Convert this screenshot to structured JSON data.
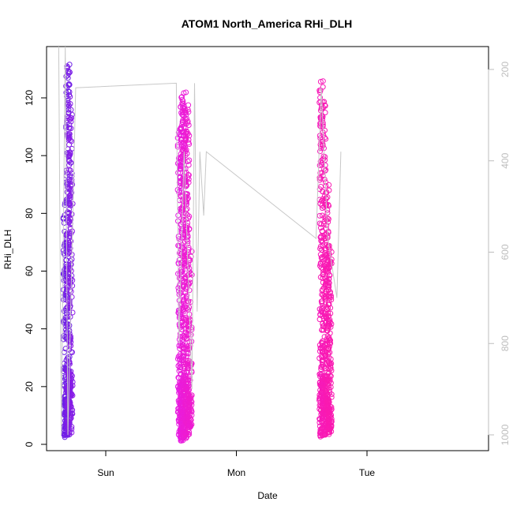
{
  "chart_data": {
    "type": "scatter",
    "title": "ATOM1 North_America RHi_DLH",
    "xlabel": "Date",
    "ylabel": "RHi_DLH",
    "x_ticks": [
      "Sun",
      "Mon",
      "Tue"
    ],
    "y_ticks": [
      "0",
      "20",
      "40",
      "60",
      "80",
      "100",
      "120"
    ],
    "ylim": [
      0,
      133
    ],
    "y2_ticks": [
      "200",
      "400",
      "600",
      "800",
      "1000"
    ],
    "y2lim": [
      1000,
      200
    ],
    "y2_reversed": true,
    "grid": false,
    "marker": "open-circle",
    "colors": {
      "flight1": "#6a1ee6",
      "flight2": "#e51de8",
      "flight3": "#fa1ab0",
      "pressure_line": "#c8c8c8",
      "right_axis": "#bdbdbd"
    },
    "groups": [
      {
        "day_offset": -0.28,
        "stripes": [
          {
            "dx": -0.03,
            "lo": 2,
            "hi": 86,
            "n": 140,
            "c": 0.0
          },
          {
            "dx": -0.01,
            "lo": 3,
            "hi": 133,
            "n": 190,
            "c": 0.05
          },
          {
            "dx": 0.0,
            "lo": 4,
            "hi": 121,
            "n": 140,
            "c": 0.1
          },
          {
            "dx": 0.012,
            "lo": 4,
            "hi": 118,
            "n": 110,
            "c": 0.12
          }
        ]
      },
      {
        "day_offset": 0.6,
        "stripes": [
          {
            "dx": -0.035,
            "lo": 1,
            "hi": 112,
            "n": 160,
            "c": 0.55
          },
          {
            "dx": -0.015,
            "lo": 1,
            "hi": 123,
            "n": 210,
            "c": 0.62
          },
          {
            "dx": 0.005,
            "lo": 2,
            "hi": 122,
            "n": 200,
            "c": 0.66
          },
          {
            "dx": 0.025,
            "lo": 3,
            "hi": 120,
            "n": 170,
            "c": 0.7
          },
          {
            "dx": 0.045,
            "lo": 6,
            "hi": 68,
            "n": 100,
            "c": 0.72
          }
        ]
      },
      {
        "day_offset": 1.67,
        "stripes": [
          {
            "dx": -0.02,
            "lo": 2,
            "hi": 127,
            "n": 190,
            "c": 0.92
          },
          {
            "dx": 0.0,
            "lo": 3,
            "hi": 120,
            "n": 180,
            "c": 0.95
          },
          {
            "dx": 0.025,
            "lo": 3,
            "hi": 90,
            "n": 170,
            "c": 0.97
          },
          {
            "dx": 0.045,
            "lo": 4,
            "hi": 69,
            "n": 130,
            "c": 1.0
          }
        ]
      }
    ],
    "pressure_line": [
      {
        "day": -0.36,
        "p": 60
      },
      {
        "day": -0.34,
        "p": 1000
      },
      {
        "day": -0.31,
        "p": 60
      },
      {
        "day": -0.29,
        "p": 1000
      },
      {
        "day": -0.23,
        "p": 240
      },
      {
        "day": 0.54,
        "p": 230
      },
      {
        "day": 0.56,
        "p": 800
      },
      {
        "day": 0.6,
        "p": 380
      },
      {
        "day": 0.66,
        "p": 900
      },
      {
        "day": 0.68,
        "p": 230
      },
      {
        "day": 0.7,
        "p": 730
      },
      {
        "day": 0.72,
        "p": 380
      },
      {
        "day": 0.75,
        "p": 520
      },
      {
        "day": 0.77,
        "p": 380
      },
      {
        "day": 1.61,
        "p": 570
      },
      {
        "day": 1.65,
        "p": 240
      },
      {
        "day": 1.7,
        "p": 570
      },
      {
        "day": 1.77,
        "p": 700
      },
      {
        "day": 1.8,
        "p": 380
      }
    ]
  }
}
